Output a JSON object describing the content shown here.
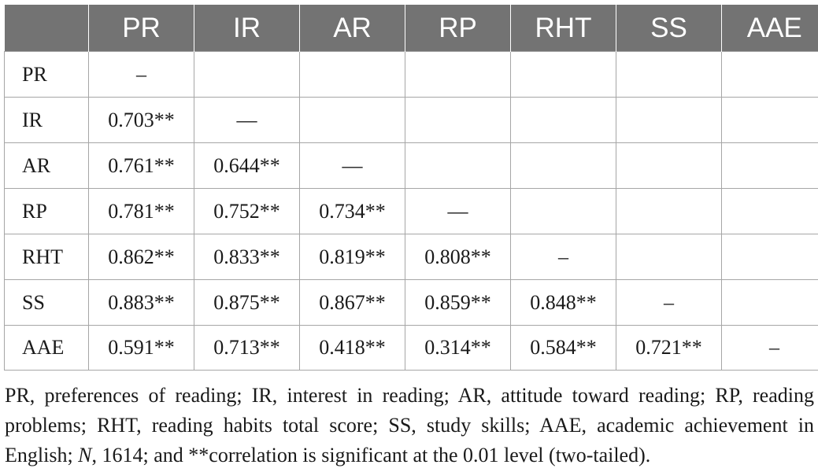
{
  "table": {
    "header": [
      "",
      "PR",
      "IR",
      "AR",
      "RP",
      "RHT",
      "SS",
      "AAE"
    ],
    "rows": [
      {
        "label": "PR",
        "cells": [
          "–",
          "",
          "",
          "",
          "",
          "",
          ""
        ]
      },
      {
        "label": "IR",
        "cells": [
          "0.703**",
          "—",
          "",
          "",
          "",
          "",
          ""
        ]
      },
      {
        "label": "AR",
        "cells": [
          "0.761**",
          "0.644**",
          "—",
          "",
          "",
          "",
          ""
        ]
      },
      {
        "label": "RP",
        "cells": [
          "0.781**",
          "0.752**",
          "0.734**",
          "—",
          "",
          "",
          ""
        ]
      },
      {
        "label": "RHT",
        "cells": [
          "0.862**",
          "0.833**",
          "0.819**",
          "0.808**",
          "–",
          "",
          ""
        ]
      },
      {
        "label": "SS",
        "cells": [
          "0.883**",
          "0.875**",
          "0.867**",
          "0.859**",
          "0.848**",
          "–",
          ""
        ]
      },
      {
        "label": "AAE",
        "cells": [
          "0.591**",
          "0.713**",
          "0.418**",
          "0.314**",
          "0.584**",
          "0.721**",
          "–"
        ]
      }
    ]
  },
  "footnote": {
    "part1": "PR, preferences of reading; IR, interest in reading; AR, attitude toward reading; RP, reading problems; RHT, reading habits total score; SS, study skills; AAE, academic achievement in English; ",
    "n_symbol": "N",
    "part2": ", 1614; and **correlation is significant at the 0.01 level (two-tailed)."
  },
  "colors": {
    "header_bg": "#737373",
    "header_text": "#ffffff",
    "grid": "#a6a6a6"
  }
}
